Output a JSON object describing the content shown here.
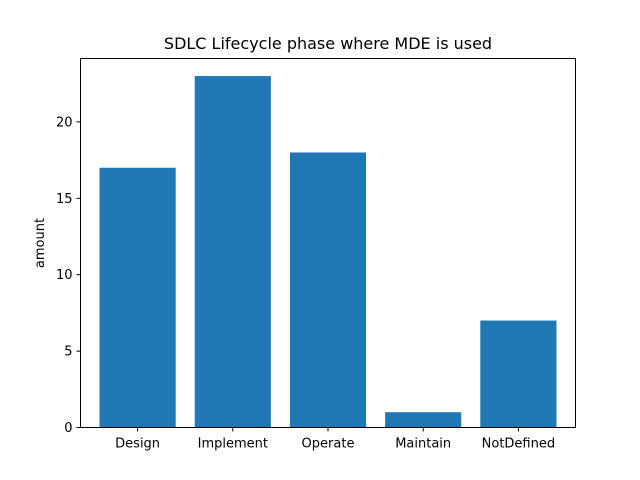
{
  "chart_data": {
    "type": "bar",
    "title": "SDLC Lifecycle phase where MDE is used",
    "xlabel": "",
    "ylabel": "amount",
    "categories": [
      "Design",
      "Implement",
      "Operate",
      "Maintain",
      "NotDefined"
    ],
    "values": [
      17,
      23,
      18,
      1,
      7
    ],
    "ylim": [
      0,
      24.15
    ],
    "yticks": [
      0,
      5,
      10,
      15,
      20
    ],
    "grid": false,
    "bar_color": "#1f77b4"
  }
}
